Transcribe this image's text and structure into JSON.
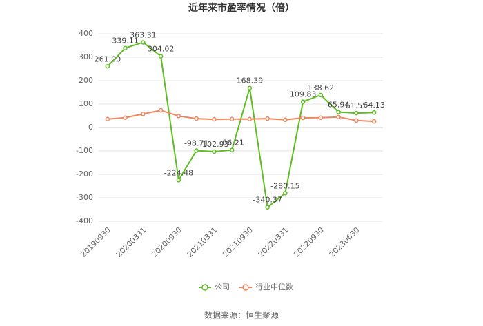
{
  "chart_data": {
    "type": "line",
    "title": "近年来市盈率情况（倍）",
    "categories": [
      "20190930",
      null,
      "20200331",
      null,
      "20200930",
      null,
      "20210331",
      null,
      "20210930",
      null,
      "20220331",
      null,
      "20220930",
      null,
      "20230630",
      null
    ],
    "series": [
      {
        "name": "公司",
        "color": "#5bbd1f",
        "values": [
          261.0,
          339.11,
          363.31,
          304.02,
          -224.48,
          -98.71,
          -102.93,
          -96.21,
          168.39,
          -340.37,
          -280.15,
          109.83,
          138.62,
          65.94,
          61.55,
          64.13
        ],
        "value_labels": [
          "261.00",
          "339.11",
          "363.31",
          "304.02",
          "-224.48",
          "-98.71",
          "-102.93",
          "-96.21",
          "168.39",
          "-340.37",
          "-280.15",
          "109.83",
          "138.62",
          "65.94",
          "61.55",
          "64.13"
        ]
      },
      {
        "name": "行业中位数",
        "color": "#f4845d",
        "values": [
          36,
          42,
          58,
          73,
          49,
          38,
          35,
          36,
          36,
          38,
          33,
          41,
          42,
          45,
          30,
          26
        ]
      }
    ],
    "ylim": [
      -400,
      400
    ],
    "yticks": [
      -400,
      -300,
      -200,
      -100,
      0,
      100,
      200,
      300,
      400
    ],
    "grid": true,
    "source": "数据来源：恒生聚源"
  }
}
